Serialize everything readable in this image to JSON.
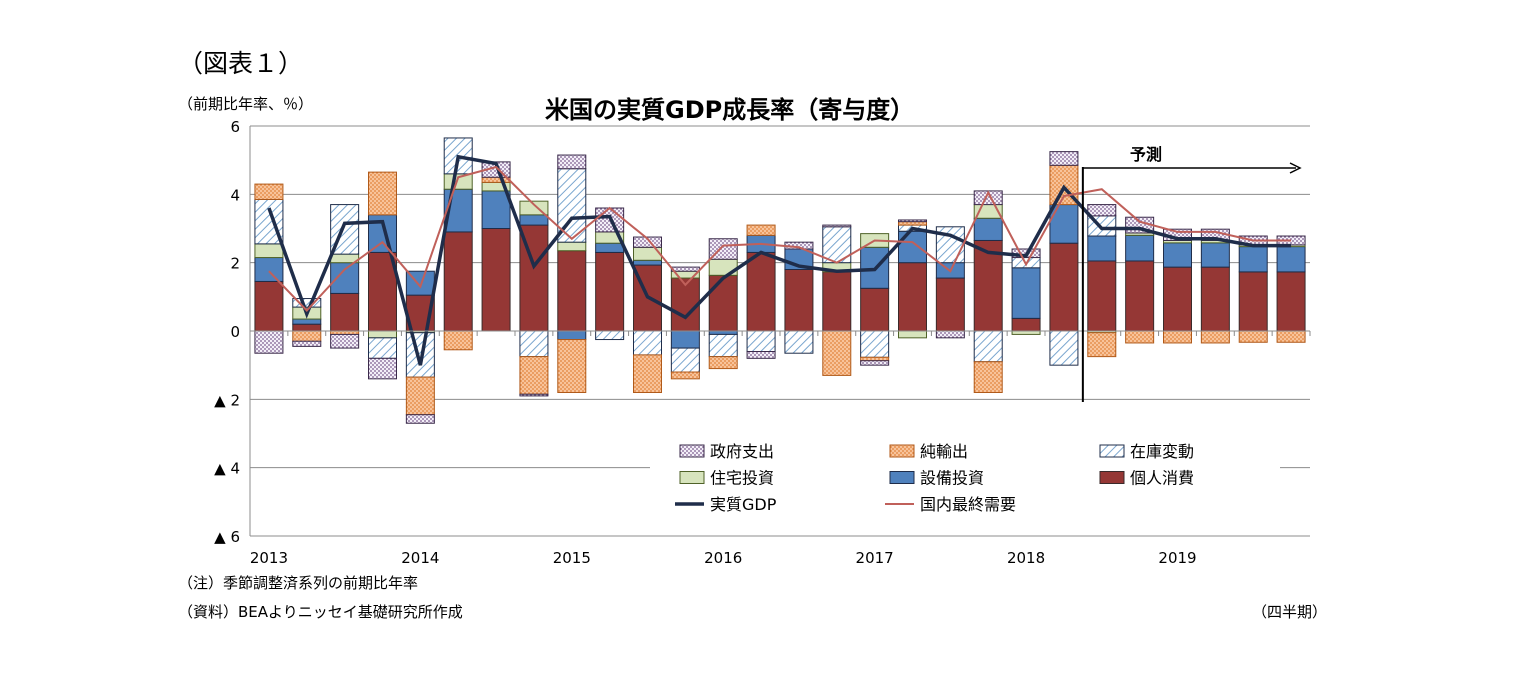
{
  "figure_label": "（図表１）",
  "notes": [
    "（注）季節調整済系列の前期比年率",
    "（資料）BEAよりニッセイ基礎研究所作成"
  ],
  "chart_data": {
    "type": "bar",
    "stacked": true,
    "title": "米国の実質GDP成長率（寄与度）",
    "ylabel": "（前期比年率、％）",
    "xlabel": "（四半期）",
    "ylim": [
      -6,
      6
    ],
    "yticks": [
      6,
      4,
      2,
      0,
      -2,
      -4,
      -6
    ],
    "ytick_labels": [
      "6",
      "4",
      "2",
      "0",
      "▲ 2",
      "▲ 4",
      "▲ 6"
    ],
    "grid": true,
    "legend_position": "bottom-right inside",
    "year_labels": [
      "2013",
      "2014",
      "2015",
      "2016",
      "2017",
      "2018",
      "2019"
    ],
    "categories": [
      "2013Q1",
      "2013Q2",
      "2013Q3",
      "2013Q4",
      "2014Q1",
      "2014Q2",
      "2014Q3",
      "2014Q4",
      "2015Q1",
      "2015Q2",
      "2015Q3",
      "2015Q4",
      "2016Q1",
      "2016Q2",
      "2016Q3",
      "2016Q4",
      "2017Q1",
      "2017Q2",
      "2017Q3",
      "2017Q4",
      "2018Q1",
      "2018Q2",
      "2018Q3",
      "2018Q4",
      "2019Q1",
      "2019Q2",
      "2019Q3",
      "2019Q4"
    ],
    "forecast": {
      "label": "予測",
      "starts_after": "2018Q2"
    },
    "series": [
      {
        "name": "個人消費",
        "kind": "bar",
        "color": "#953735",
        "values": [
          1.45,
          0.2,
          1.1,
          2.3,
          1.05,
          2.9,
          3.0,
          3.1,
          2.35,
          2.3,
          1.93,
          1.55,
          1.63,
          2.3,
          1.8,
          1.73,
          1.25,
          2.0,
          1.55,
          2.65,
          0.37,
          2.57,
          2.05,
          2.05,
          1.87,
          1.87,
          1.73,
          1.73
        ]
      },
      {
        "name": "設備投資",
        "kind": "bar",
        "color": "#4f81bd",
        "values": [
          0.7,
          0.15,
          0.9,
          1.1,
          0.7,
          1.25,
          1.1,
          0.3,
          -0.25,
          0.27,
          0.14,
          -0.5,
          -0.1,
          0.5,
          0.6,
          0.0,
          1.2,
          0.92,
          0.45,
          0.65,
          1.48,
          1.13,
          0.73,
          0.75,
          0.71,
          0.71,
          0.74,
          0.74
        ]
      },
      {
        "name": "住宅投資",
        "kind": "bar",
        "color": "#d7e4bd",
        "values": [
          0.4,
          0.35,
          0.25,
          -0.2,
          -0.05,
          0.45,
          0.25,
          0.4,
          0.25,
          0.33,
          0.38,
          0.2,
          0.47,
          0.0,
          0.0,
          0.27,
          0.4,
          -0.2,
          0.0,
          0.4,
          -0.1,
          0.0,
          -0.05,
          0.07,
          0.07,
          0.07,
          0.05,
          0.05
        ]
      },
      {
        "name": "在庫変動",
        "kind": "bar",
        "color": "#dbe9f6",
        "values": [
          1.3,
          0.25,
          1.45,
          -0.6,
          -1.3,
          1.05,
          0.0,
          -0.75,
          2.15,
          -0.25,
          -0.7,
          -0.7,
          -0.65,
          -0.6,
          -0.65,
          1.05,
          -0.77,
          0.18,
          1.05,
          -0.9,
          0.3,
          -1.0,
          0.59,
          0.0,
          0.0,
          0.0,
          0.0,
          0.0
        ]
      },
      {
        "name": "純輸出",
        "kind": "bar",
        "color": "#f6b37f",
        "values": [
          0.45,
          -0.3,
          -0.1,
          1.25,
          -1.1,
          -0.55,
          0.15,
          -1.1,
          -1.55,
          0.0,
          -1.1,
          -0.2,
          -0.35,
          0.3,
          0.0,
          -1.3,
          -0.1,
          0.1,
          0.0,
          -0.9,
          0.0,
          1.15,
          -0.7,
          -0.35,
          -0.35,
          -0.35,
          -0.33,
          -0.33
        ]
      },
      {
        "name": "政府支出",
        "kind": "bar",
        "color": "#e6dff0",
        "values": [
          -0.65,
          -0.15,
          -0.4,
          -0.6,
          -0.25,
          0.0,
          0.45,
          -0.05,
          0.4,
          0.7,
          0.3,
          0.12,
          0.6,
          -0.2,
          0.2,
          0.05,
          -0.13,
          0.05,
          -0.2,
          0.4,
          0.25,
          0.4,
          0.33,
          0.46,
          0.33,
          0.33,
          0.26,
          0.26
        ]
      },
      {
        "name": "実質GDP",
        "kind": "line",
        "color": "#1f2d4a",
        "values": [
          3.6,
          0.5,
          3.15,
          3.2,
          -1.0,
          5.1,
          4.9,
          1.9,
          3.3,
          3.35,
          1.0,
          0.4,
          1.55,
          2.3,
          1.9,
          1.75,
          1.8,
          3.0,
          2.8,
          2.3,
          2.2,
          4.2,
          3.0,
          3.0,
          2.7,
          2.7,
          2.5,
          2.5
        ]
      },
      {
        "name": "国内最終需要",
        "kind": "line",
        "color": "#c0605a",
        "values": [
          1.75,
          0.6,
          1.8,
          2.6,
          1.3,
          4.5,
          4.8,
          3.7,
          2.7,
          3.6,
          2.7,
          1.35,
          2.5,
          2.55,
          2.45,
          2.0,
          2.65,
          2.6,
          1.75,
          4.05,
          1.95,
          3.95,
          4.15,
          3.2,
          2.9,
          2.9,
          2.65,
          2.65
        ]
      }
    ]
  }
}
